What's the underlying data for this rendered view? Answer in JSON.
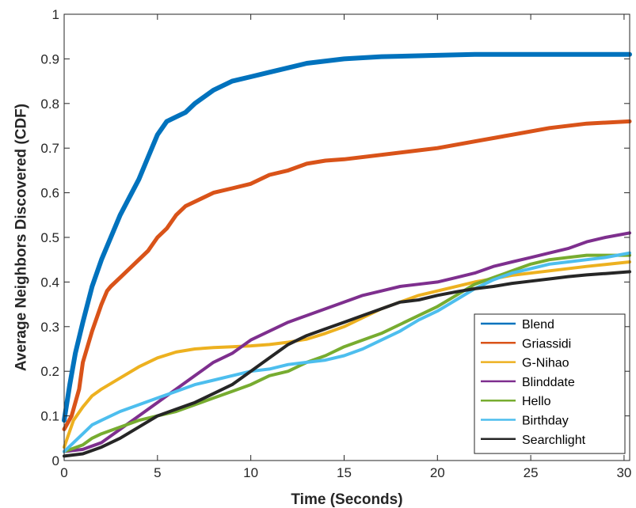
{
  "chart_data": {
    "type": "line",
    "title": "",
    "xlabel": "Time (Seconds)",
    "ylabel": "Average Neighbors Discovered (CDF)",
    "xlim": [
      0,
      30.3
    ],
    "ylim": [
      0,
      1
    ],
    "xticks": [
      "0",
      "5",
      "10",
      "15",
      "20",
      "25",
      "30"
    ],
    "xtick_values": [
      0,
      5,
      10,
      15,
      20,
      25,
      30
    ],
    "yticks": [
      "0",
      "0.1",
      "0.2",
      "0.3",
      "0.4",
      "0.5",
      "0.6",
      "0.7",
      "0.8",
      "0.9",
      "1"
    ],
    "ytick_values": [
      0,
      0.1,
      0.2,
      0.3,
      0.4,
      0.5,
      0.6,
      0.7,
      0.8,
      0.9,
      1
    ],
    "grid": false,
    "legend_position": "bottom-right",
    "series": [
      {
        "name": "Blend",
        "color": "#0072BD",
        "points": [
          [
            0,
            0.09
          ],
          [
            0.3,
            0.17
          ],
          [
            0.6,
            0.24
          ],
          [
            1,
            0.31
          ],
          [
            1.5,
            0.39
          ],
          [
            2,
            0.45
          ],
          [
            2.5,
            0.5
          ],
          [
            3,
            0.55
          ],
          [
            3.5,
            0.59
          ],
          [
            4,
            0.63
          ],
          [
            4.5,
            0.68
          ],
          [
            5,
            0.73
          ],
          [
            5.5,
            0.76
          ],
          [
            6,
            0.77
          ],
          [
            6.5,
            0.78
          ],
          [
            7,
            0.8
          ],
          [
            8,
            0.83
          ],
          [
            9,
            0.85
          ],
          [
            10,
            0.86
          ],
          [
            11,
            0.87
          ],
          [
            12,
            0.88
          ],
          [
            13,
            0.89
          ],
          [
            15,
            0.9
          ],
          [
            17,
            0.905
          ],
          [
            20,
            0.908
          ],
          [
            22,
            0.91
          ],
          [
            25,
            0.91
          ],
          [
            30.3,
            0.91
          ]
        ]
      },
      {
        "name": "Griassidi",
        "color": "#D95319",
        "points": [
          [
            0,
            0.07
          ],
          [
            0.4,
            0.1
          ],
          [
            0.8,
            0.16
          ],
          [
            1,
            0.22
          ],
          [
            1.5,
            0.29
          ],
          [
            2,
            0.35
          ],
          [
            2.3,
            0.38
          ],
          [
            2.5,
            0.39
          ],
          [
            3,
            0.41
          ],
          [
            3.5,
            0.43
          ],
          [
            4,
            0.45
          ],
          [
            4.5,
            0.47
          ],
          [
            5,
            0.5
          ],
          [
            5.5,
            0.52
          ],
          [
            6,
            0.55
          ],
          [
            6.5,
            0.57
          ],
          [
            7,
            0.58
          ],
          [
            8,
            0.6
          ],
          [
            9,
            0.61
          ],
          [
            10,
            0.62
          ],
          [
            11,
            0.64
          ],
          [
            12,
            0.65
          ],
          [
            13,
            0.665
          ],
          [
            14,
            0.672
          ],
          [
            15,
            0.675
          ],
          [
            17,
            0.685
          ],
          [
            19,
            0.695
          ],
          [
            20,
            0.7
          ],
          [
            22,
            0.715
          ],
          [
            24,
            0.73
          ],
          [
            26,
            0.745
          ],
          [
            28,
            0.755
          ],
          [
            30.3,
            0.76
          ]
        ]
      },
      {
        "name": "G-Nihao",
        "color": "#EDB120",
        "points": [
          [
            0,
            0.03
          ],
          [
            0.5,
            0.09
          ],
          [
            1,
            0.12
          ],
          [
            1.5,
            0.145
          ],
          [
            2,
            0.16
          ],
          [
            3,
            0.185
          ],
          [
            4,
            0.21
          ],
          [
            5,
            0.23
          ],
          [
            6,
            0.243
          ],
          [
            7,
            0.25
          ],
          [
            8,
            0.253
          ],
          [
            9,
            0.255
          ],
          [
            10,
            0.257
          ],
          [
            11,
            0.26
          ],
          [
            12,
            0.265
          ],
          [
            13,
            0.272
          ],
          [
            14,
            0.285
          ],
          [
            15,
            0.3
          ],
          [
            16,
            0.32
          ],
          [
            17,
            0.34
          ],
          [
            18,
            0.355
          ],
          [
            19,
            0.37
          ],
          [
            20,
            0.38
          ],
          [
            22,
            0.4
          ],
          [
            24,
            0.415
          ],
          [
            26,
            0.425
          ],
          [
            28,
            0.435
          ],
          [
            30.3,
            0.445
          ]
        ]
      },
      {
        "name": "Blinddate",
        "color": "#7E2F8E",
        "points": [
          [
            0,
            0.02
          ],
          [
            1,
            0.025
          ],
          [
            2,
            0.04
          ],
          [
            3,
            0.07
          ],
          [
            4,
            0.1
          ],
          [
            5,
            0.13
          ],
          [
            6,
            0.16
          ],
          [
            7,
            0.19
          ],
          [
            8,
            0.22
          ],
          [
            9,
            0.24
          ],
          [
            10,
            0.27
          ],
          [
            11,
            0.29
          ],
          [
            12,
            0.31
          ],
          [
            13,
            0.325
          ],
          [
            14,
            0.34
          ],
          [
            15,
            0.355
          ],
          [
            16,
            0.37
          ],
          [
            17,
            0.38
          ],
          [
            18,
            0.39
          ],
          [
            19,
            0.395
          ],
          [
            20,
            0.4
          ],
          [
            21,
            0.41
          ],
          [
            22,
            0.42
          ],
          [
            23,
            0.435
          ],
          [
            24,
            0.445
          ],
          [
            25,
            0.455
          ],
          [
            26,
            0.465
          ],
          [
            27,
            0.475
          ],
          [
            28,
            0.49
          ],
          [
            29,
            0.5
          ],
          [
            30.3,
            0.51
          ]
        ]
      },
      {
        "name": "Hello",
        "color": "#77AC30",
        "points": [
          [
            0,
            0.02
          ],
          [
            1,
            0.035
          ],
          [
            1.5,
            0.05
          ],
          [
            2,
            0.06
          ],
          [
            3,
            0.075
          ],
          [
            4,
            0.09
          ],
          [
            5,
            0.1
          ],
          [
            6,
            0.11
          ],
          [
            7,
            0.125
          ],
          [
            8,
            0.14
          ],
          [
            9,
            0.155
          ],
          [
            10,
            0.17
          ],
          [
            11,
            0.19
          ],
          [
            12,
            0.2
          ],
          [
            13,
            0.22
          ],
          [
            14,
            0.235
          ],
          [
            15,
            0.255
          ],
          [
            16,
            0.27
          ],
          [
            17,
            0.285
          ],
          [
            18,
            0.305
          ],
          [
            19,
            0.325
          ],
          [
            20,
            0.345
          ],
          [
            21,
            0.37
          ],
          [
            22,
            0.395
          ],
          [
            23,
            0.41
          ],
          [
            24,
            0.425
          ],
          [
            25,
            0.44
          ],
          [
            26,
            0.45
          ],
          [
            27,
            0.455
          ],
          [
            28,
            0.46
          ],
          [
            30.3,
            0.46
          ]
        ]
      },
      {
        "name": "Birthday",
        "color": "#4DBEEE",
        "points": [
          [
            0,
            0.02
          ],
          [
            0.5,
            0.04
          ],
          [
            1,
            0.06
          ],
          [
            1.5,
            0.08
          ],
          [
            2,
            0.09
          ],
          [
            3,
            0.11
          ],
          [
            4,
            0.125
          ],
          [
            5,
            0.14
          ],
          [
            6,
            0.155
          ],
          [
            7,
            0.17
          ],
          [
            8,
            0.18
          ],
          [
            9,
            0.19
          ],
          [
            10,
            0.2
          ],
          [
            11,
            0.205
          ],
          [
            12,
            0.215
          ],
          [
            13,
            0.22
          ],
          [
            14,
            0.225
          ],
          [
            15,
            0.235
          ],
          [
            16,
            0.25
          ],
          [
            17,
            0.27
          ],
          [
            18,
            0.29
          ],
          [
            19,
            0.315
          ],
          [
            20,
            0.335
          ],
          [
            21,
            0.36
          ],
          [
            22,
            0.385
          ],
          [
            23,
            0.405
          ],
          [
            24,
            0.42
          ],
          [
            25,
            0.43
          ],
          [
            26,
            0.44
          ],
          [
            27,
            0.445
          ],
          [
            28,
            0.45
          ],
          [
            29,
            0.455
          ],
          [
            30.3,
            0.465
          ]
        ]
      },
      {
        "name": "Searchlight",
        "color": "#262626",
        "points": [
          [
            0,
            0.01
          ],
          [
            1,
            0.015
          ],
          [
            2,
            0.03
          ],
          [
            3,
            0.05
          ],
          [
            4,
            0.075
          ],
          [
            5,
            0.1
          ],
          [
            6,
            0.115
          ],
          [
            7,
            0.13
          ],
          [
            8,
            0.15
          ],
          [
            9,
            0.17
          ],
          [
            10,
            0.2
          ],
          [
            11,
            0.23
          ],
          [
            12,
            0.26
          ],
          [
            13,
            0.28
          ],
          [
            14,
            0.295
          ],
          [
            15,
            0.31
          ],
          [
            16,
            0.325
          ],
          [
            17,
            0.34
          ],
          [
            18,
            0.355
          ],
          [
            19,
            0.36
          ],
          [
            20,
            0.37
          ],
          [
            21,
            0.378
          ],
          [
            22,
            0.385
          ],
          [
            23,
            0.39
          ],
          [
            24,
            0.397
          ],
          [
            25,
            0.402
          ],
          [
            26,
            0.407
          ],
          [
            27,
            0.412
          ],
          [
            28,
            0.416
          ],
          [
            29,
            0.419
          ],
          [
            30.3,
            0.423
          ]
        ]
      }
    ]
  }
}
